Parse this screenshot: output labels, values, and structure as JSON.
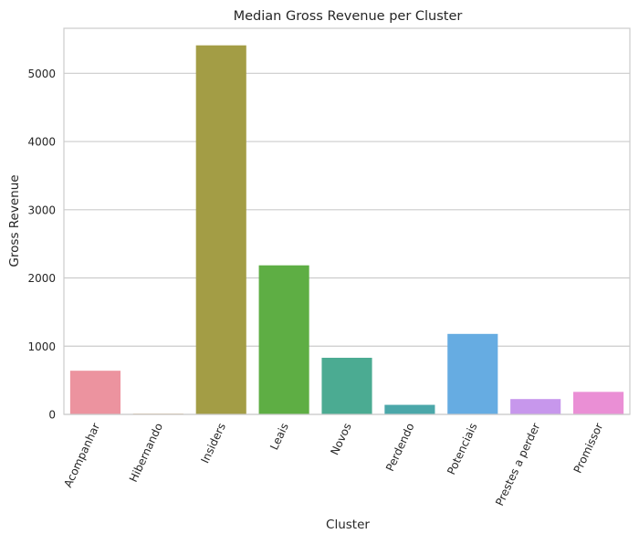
{
  "chart_data": {
    "type": "bar",
    "title": "Median Gross Revenue per Cluster",
    "xlabel": "Cluster",
    "ylabel": "Gross Revenue",
    "categories": [
      "Acompanhar",
      "Hibernando",
      "Insiders",
      "Leais",
      "Novos",
      "Perdendo",
      "Potenciais",
      "Prestes a perder",
      "Promissor"
    ],
    "values": [
      640,
      10,
      5410,
      2185,
      830,
      140,
      1180,
      225,
      330
    ],
    "colors": [
      "#ec939f",
      "#d49a57",
      "#a39d45",
      "#5eae44",
      "#4bab92",
      "#4ba7a9",
      "#66ace2",
      "#c797ec",
      "#ea8fd5"
    ],
    "ylim": [
      0,
      5660
    ],
    "yticks": [
      0,
      1000,
      2000,
      3000,
      4000,
      5000
    ],
    "ytick_labels": [
      "0",
      "1000",
      "2000",
      "3000",
      "4000",
      "5000"
    ],
    "grid": true,
    "legend": "none"
  }
}
